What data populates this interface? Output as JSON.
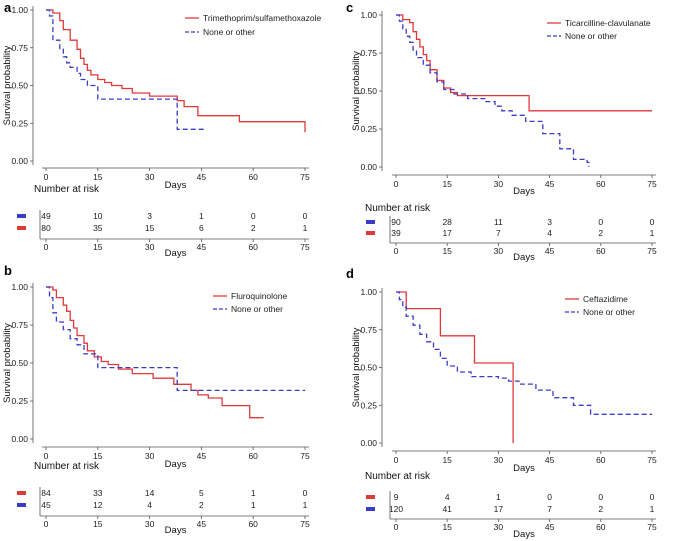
{
  "colors": {
    "red": "#e0393a",
    "blue": "#3b3bc9",
    "axis": "#555555"
  },
  "chart_data": [
    {
      "panel": "a",
      "type": "line",
      "xlabel": "Days",
      "ylabel": "Survival probability",
      "xlim": [
        0,
        75
      ],
      "ylim": [
        0,
        1
      ],
      "xticks": [
        0,
        15,
        30,
        45,
        60,
        75
      ],
      "yticks": [
        0,
        0.25,
        0.5,
        0.75,
        1
      ],
      "yticklabels": [
        "0.00",
        "0.25",
        "0.50",
        "0.75",
        "1.00"
      ],
      "series": [
        {
          "name": "Trimethoprim/sulfamethoxazole",
          "color": "red",
          "dash": false,
          "x": [
            0,
            2,
            4,
            5,
            7,
            9,
            10,
            11,
            12,
            13,
            15,
            17,
            19,
            22,
            25,
            30,
            38,
            40,
            44,
            56,
            75
          ],
          "y": [
            1,
            0.98,
            0.93,
            0.87,
            0.8,
            0.74,
            0.68,
            0.64,
            0.6,
            0.57,
            0.54,
            0.52,
            0.5,
            0.48,
            0.45,
            0.43,
            0.4,
            0.36,
            0.3,
            0.26,
            0.19
          ]
        },
        {
          "name": "None or other",
          "color": "blue",
          "dash": true,
          "x": [
            0,
            1,
            2,
            4,
            5,
            6,
            7,
            9,
            10,
            12,
            15,
            37,
            38,
            46
          ],
          "y": [
            1,
            0.96,
            0.8,
            0.74,
            0.69,
            0.65,
            0.62,
            0.58,
            0.54,
            0.5,
            0.41,
            0.41,
            0.21,
            0.21
          ]
        }
      ],
      "risk_table": {
        "title": "Number at risk",
        "times": [
          0,
          15,
          30,
          45,
          60,
          75
        ],
        "rows": [
          {
            "color": "blue",
            "values": [
              49,
              10,
              3,
              1,
              0,
              0
            ]
          },
          {
            "color": "red",
            "values": [
              80,
              35,
              15,
              6,
              2,
              1
            ]
          }
        ]
      }
    },
    {
      "panel": "b",
      "type": "line",
      "xlabel": "Days",
      "ylabel": "Survival probability",
      "xlim": [
        0,
        75
      ],
      "ylim": [
        0,
        1
      ],
      "xticks": [
        0,
        15,
        30,
        45,
        60,
        75
      ],
      "yticks": [
        0,
        0.25,
        0.5,
        0.75,
        1
      ],
      "yticklabels": [
        "0.00",
        "0.25",
        "0.50",
        "0.75",
        "1.00"
      ],
      "series": [
        {
          "name": "Fluroquinolone",
          "color": "red",
          "dash": false,
          "x": [
            0,
            2,
            3,
            5,
            6,
            7,
            8,
            9,
            11,
            12,
            14,
            16,
            18,
            21,
            25,
            31,
            37,
            42,
            44,
            47,
            51,
            59,
            63
          ],
          "y": [
            1,
            0.98,
            0.93,
            0.88,
            0.84,
            0.78,
            0.73,
            0.68,
            0.63,
            0.58,
            0.54,
            0.51,
            0.49,
            0.46,
            0.43,
            0.4,
            0.36,
            0.32,
            0.29,
            0.27,
            0.22,
            0.14,
            0.14
          ]
        },
        {
          "name": "None or other",
          "color": "blue",
          "dash": true,
          "x": [
            0,
            1,
            2,
            3,
            5,
            7,
            9,
            11,
            15,
            37,
            38,
            75
          ],
          "y": [
            1,
            0.93,
            0.83,
            0.77,
            0.72,
            0.66,
            0.62,
            0.56,
            0.47,
            0.47,
            0.32,
            0.32
          ]
        }
      ],
      "risk_table": {
        "title": "Number at risk",
        "times": [
          0,
          15,
          30,
          45,
          60,
          75
        ],
        "rows": [
          {
            "color": "red",
            "values": [
              84,
              33,
              14,
              5,
              1,
              0
            ]
          },
          {
            "color": "blue",
            "values": [
              45,
              12,
              4,
              2,
              1,
              1
            ]
          }
        ]
      }
    },
    {
      "panel": "c",
      "type": "line",
      "xlabel": "Days",
      "ylabel": "Survival probability",
      "xlim": [
        0,
        75
      ],
      "ylim": [
        0,
        1
      ],
      "xticks": [
        0,
        15,
        30,
        45,
        60,
        75
      ],
      "yticks": [
        0,
        0.25,
        0.5,
        0.75,
        1
      ],
      "yticklabels": [
        "0.00",
        "0.25",
        "0.50",
        "0.75",
        "1.00"
      ],
      "series": [
        {
          "name": "Ticarcilline-clavulanate",
          "color": "red",
          "dash": false,
          "x": [
            0,
            2,
            4,
            5,
            6,
            7,
            8,
            9,
            10,
            12,
            14,
            16,
            18,
            39,
            75
          ],
          "y": [
            1,
            0.97,
            0.95,
            0.89,
            0.84,
            0.79,
            0.74,
            0.7,
            0.64,
            0.57,
            0.52,
            0.49,
            0.47,
            0.37,
            0.37
          ]
        },
        {
          "name": "None or other",
          "color": "blue",
          "dash": true,
          "x": [
            0,
            1,
            2,
            3,
            4,
            5,
            6,
            8,
            10,
            12,
            14,
            17,
            21,
            26,
            29,
            31,
            34,
            38,
            43,
            48,
            52,
            56,
            56.5
          ],
          "y": [
            1,
            0.96,
            0.91,
            0.86,
            0.82,
            0.77,
            0.72,
            0.67,
            0.62,
            0.56,
            0.51,
            0.48,
            0.45,
            0.43,
            0.4,
            0.37,
            0.34,
            0.3,
            0.22,
            0.12,
            0.05,
            0.03,
            0.0
          ]
        }
      ],
      "risk_table": {
        "title": "Number at risk",
        "times": [
          0,
          15,
          30,
          45,
          60,
          75
        ],
        "rows": [
          {
            "color": "blue",
            "values": [
              90,
              28,
              11,
              3,
              0,
              0
            ]
          },
          {
            "color": "red",
            "values": [
              39,
              17,
              7,
              4,
              2,
              1
            ]
          }
        ]
      }
    },
    {
      "panel": "d",
      "type": "line",
      "xlabel": "Days",
      "ylabel": "Survival probability",
      "xlim": [
        0,
        75
      ],
      "ylim": [
        0,
        1
      ],
      "xticks": [
        0,
        15,
        30,
        45,
        60,
        75
      ],
      "yticks": [
        0,
        0.25,
        0.5,
        0.75,
        1
      ],
      "yticklabels": [
        "0.00",
        "0.25",
        "0.50",
        "0.75",
        "1.00"
      ],
      "series": [
        {
          "name": "Ceftazidime",
          "color": "red",
          "dash": false,
          "x": [
            0,
            3,
            13,
            23,
            34,
            34.3
          ],
          "y": [
            1,
            0.89,
            0.71,
            0.53,
            0.53,
            0.0
          ]
        },
        {
          "name": "None or other",
          "color": "blue",
          "dash": true,
          "x": [
            0,
            1,
            2,
            3,
            5,
            7,
            9,
            11,
            13,
            15,
            18,
            22,
            30,
            33,
            36,
            41,
            46,
            52,
            57,
            75
          ],
          "y": [
            1,
            0.95,
            0.9,
            0.84,
            0.78,
            0.72,
            0.67,
            0.62,
            0.56,
            0.51,
            0.47,
            0.44,
            0.43,
            0.41,
            0.39,
            0.35,
            0.3,
            0.25,
            0.19,
            0.19
          ]
        }
      ],
      "risk_table": {
        "title": "Number at risk",
        "times": [
          0,
          15,
          30,
          45,
          60,
          75
        ],
        "rows": [
          {
            "color": "red",
            "values": [
              9,
              4,
              1,
              0,
              0,
              0
            ]
          },
          {
            "color": "blue",
            "values": [
              120,
              41,
              17,
              7,
              2,
              1
            ]
          }
        ]
      }
    }
  ]
}
